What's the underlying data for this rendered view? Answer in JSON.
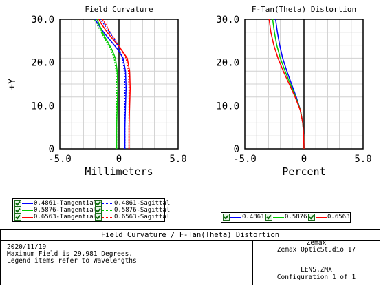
{
  "chart_data": [
    {
      "type": "line",
      "title": "Field Curvature",
      "xlabel": "Millimeters",
      "ylabel": "+Y",
      "xlim": [
        -5.0,
        5.0
      ],
      "ylim": [
        0,
        30.0
      ],
      "x_ticks": [
        "-5.0",
        "0",
        "5.0"
      ],
      "y_ticks": [
        "0",
        "10.0",
        "20.0",
        "30.0"
      ],
      "grid": true,
      "series": [
        {
          "name": "0.4861-Tangential",
          "color": "#0000ff",
          "dash": "solid",
          "points": [
            [
              0.5,
              0
            ],
            [
              0.5,
              5
            ],
            [
              0.55,
              10
            ],
            [
              0.6,
              14
            ],
            [
              0.55,
              18
            ],
            [
              0.35,
              21
            ],
            [
              -0.1,
              23
            ],
            [
              -0.7,
              25
            ],
            [
              -1.3,
              27
            ],
            [
              -1.8,
              29
            ],
            [
              -2.0,
              30
            ]
          ]
        },
        {
          "name": "0.5876-Tangential",
          "color": "#00cc00",
          "dash": "solid",
          "points": [
            [
              -0.2,
              0
            ],
            [
              -0.2,
              5
            ],
            [
              -0.15,
              10
            ],
            [
              -0.1,
              14
            ],
            [
              -0.15,
              18
            ],
            [
              -0.3,
              21
            ],
            [
              -0.6,
              23
            ],
            [
              -1.0,
              25
            ],
            [
              -1.4,
              27
            ],
            [
              -1.7,
              29
            ],
            [
              -1.85,
              30
            ]
          ]
        },
        {
          "name": "0.6563-Tangential",
          "color": "#ff0000",
          "dash": "solid",
          "points": [
            [
              0.85,
              0
            ],
            [
              0.85,
              5
            ],
            [
              0.9,
              10
            ],
            [
              0.95,
              14
            ],
            [
              0.9,
              18
            ],
            [
              0.7,
              21
            ],
            [
              0.2,
              23
            ],
            [
              -0.4,
              25
            ],
            [
              -1.0,
              27
            ],
            [
              -1.5,
              29
            ],
            [
              -1.7,
              30
            ]
          ]
        },
        {
          "name": "0.4861-Sagittal",
          "color": "#0000ff",
          "dash": "dotted",
          "points": [
            [
              0.5,
              0
            ],
            [
              0.5,
              5
            ],
            [
              0.5,
              10
            ],
            [
              0.5,
              14
            ],
            [
              0.45,
              18
            ],
            [
              0.3,
              21
            ],
            [
              0.05,
              23
            ],
            [
              -0.3,
              25
            ],
            [
              -0.8,
              27
            ],
            [
              -1.3,
              29
            ],
            [
              -1.6,
              30
            ]
          ]
        },
        {
          "name": "0.5876-Sagittal",
          "color": "#00cc00",
          "dash": "dotted",
          "points": [
            [
              -0.2,
              0
            ],
            [
              -0.2,
              5
            ],
            [
              -0.2,
              10
            ],
            [
              -0.2,
              14
            ],
            [
              -0.25,
              18
            ],
            [
              -0.4,
              21
            ],
            [
              -0.7,
              23
            ],
            [
              -1.1,
              25
            ],
            [
              -1.5,
              27
            ],
            [
              -1.9,
              29
            ],
            [
              -2.1,
              30
            ]
          ]
        },
        {
          "name": "0.6563-Sagittal",
          "color": "#ff0000",
          "dash": "dotted",
          "points": [
            [
              0.85,
              0
            ],
            [
              0.85,
              5
            ],
            [
              0.85,
              10
            ],
            [
              0.85,
              14
            ],
            [
              0.8,
              18
            ],
            [
              0.6,
              21
            ],
            [
              0.2,
              23
            ],
            [
              -0.25,
              25
            ],
            [
              -0.75,
              27
            ],
            [
              -1.15,
              29
            ],
            [
              -1.4,
              30
            ]
          ]
        }
      ]
    },
    {
      "type": "line",
      "title": "F-Tan(Theta) Distortion",
      "xlabel": "Percent",
      "ylabel": "",
      "xlim": [
        -5.0,
        5.0
      ],
      "ylim": [
        0,
        30.0
      ],
      "x_ticks": [
        "-5.0",
        "0",
        "5.0"
      ],
      "y_ticks": [
        "0",
        "10.0",
        "20.0",
        "30.0"
      ],
      "grid": true,
      "series": [
        {
          "name": "0.4861",
          "color": "#0000ff",
          "dash": "solid",
          "points": [
            [
              0,
              0
            ],
            [
              -0.03,
              3
            ],
            [
              -0.1,
              6
            ],
            [
              -0.3,
              9
            ],
            [
              -0.65,
              12
            ],
            [
              -1.05,
              15
            ],
            [
              -1.45,
              18
            ],
            [
              -1.8,
              21
            ],
            [
              -2.05,
              24
            ],
            [
              -2.25,
              27
            ],
            [
              -2.4,
              30
            ]
          ]
        },
        {
          "name": "0.5876",
          "color": "#00cc00",
          "dash": "solid",
          "points": [
            [
              0,
              0
            ],
            [
              -0.03,
              3
            ],
            [
              -0.1,
              6
            ],
            [
              -0.3,
              9
            ],
            [
              -0.7,
              12
            ],
            [
              -1.15,
              15
            ],
            [
              -1.6,
              18
            ],
            [
              -2.0,
              21
            ],
            [
              -2.3,
              24
            ],
            [
              -2.5,
              27
            ],
            [
              -2.65,
              30
            ]
          ]
        },
        {
          "name": "0.6563",
          "color": "#ff0000",
          "dash": "solid",
          "points": [
            [
              0,
              0
            ],
            [
              -0.03,
              3
            ],
            [
              -0.1,
              6
            ],
            [
              -0.32,
              9
            ],
            [
              -0.75,
              12
            ],
            [
              -1.25,
              15
            ],
            [
              -1.75,
              18
            ],
            [
              -2.2,
              21
            ],
            [
              -2.55,
              24
            ],
            [
              -2.8,
              27
            ],
            [
              -2.95,
              30
            ]
          ]
        }
      ]
    }
  ],
  "legend_fc": [
    {
      "label": "0.4861-Tangential",
      "color": "#0000ff",
      "dash": "solid"
    },
    {
      "label": "0.4861-Sagittal",
      "color": "#0000ff",
      "dash": "dotted"
    },
    {
      "label": "0.5876-Tangential",
      "color": "#00cc00",
      "dash": "solid"
    },
    {
      "label": "0.5876-Sagittal",
      "color": "#00cc00",
      "dash": "dotted"
    },
    {
      "label": "0.6563-Tangential",
      "color": "#ff0000",
      "dash": "solid"
    },
    {
      "label": "0.6563-Sagittal",
      "color": "#ff0000",
      "dash": "dotted"
    }
  ],
  "legend_dist": [
    {
      "label": "0.4861",
      "color": "#0000ff"
    },
    {
      "label": "0.5876",
      "color": "#00cc00"
    },
    {
      "label": "0.6563",
      "color": "#ff0000"
    }
  ],
  "footer": {
    "title": "Field Curvature / F-Tan(Theta) Distortion",
    "date": "2020/11/19",
    "line2": "Maximum Field is 29.981 Degrees.",
    "line3": "Legend items refer to Wavelengths",
    "company": "Zemax",
    "product": "Zemax OpticStudio 17",
    "file": "LENS.ZMX",
    "config": "Configuration 1 of 1"
  }
}
